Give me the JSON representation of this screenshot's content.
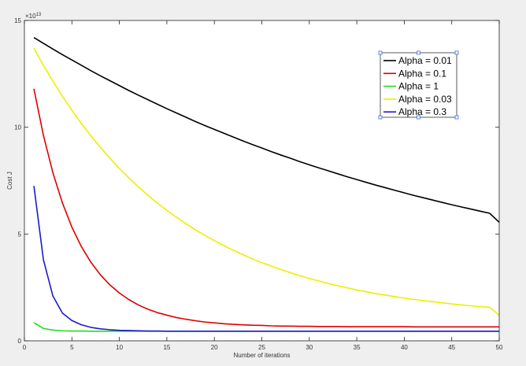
{
  "chart_data": {
    "type": "line",
    "title": "",
    "xlabel": "Number of iterations",
    "ylabel": "Cost J",
    "exponent_label": "×10",
    "exponent_power": "13",
    "xlim": [
      0,
      50
    ],
    "ylim": [
      0,
      15
    ],
    "y_multiplier": 10000000000000.0,
    "xticks": [
      0,
      5,
      10,
      15,
      20,
      25,
      30,
      35,
      40,
      45,
      50
    ],
    "yticks": [
      0,
      5,
      10,
      15
    ],
    "grid": false,
    "legend_position": "top-right",
    "x": [
      1,
      2,
      3,
      4,
      5,
      6,
      7,
      8,
      9,
      10,
      11,
      12,
      13,
      14,
      15,
      16,
      17,
      18,
      19,
      20,
      21,
      22,
      23,
      24,
      25,
      26,
      27,
      28,
      29,
      30,
      31,
      32,
      33,
      34,
      35,
      36,
      37,
      38,
      39,
      40,
      41,
      42,
      43,
      44,
      45,
      46,
      47,
      48,
      49,
      50
    ],
    "series": [
      {
        "name": "Alpha = 0.01",
        "color": "#000000",
        "values": [
          14.2,
          13.93,
          13.66,
          13.4,
          13.15,
          12.9,
          12.65,
          12.41,
          12.18,
          11.95,
          11.72,
          11.5,
          11.29,
          11.08,
          10.87,
          10.67,
          10.47,
          10.27,
          10.08,
          9.9,
          9.72,
          9.54,
          9.36,
          9.19,
          9.03,
          8.86,
          8.7,
          8.55,
          8.39,
          8.24,
          8.1,
          7.96,
          7.82,
          7.68,
          7.55,
          7.42,
          7.29,
          7.17,
          7.05,
          6.93,
          6.81,
          6.7,
          6.59,
          6.48,
          6.37,
          6.27,
          6.17,
          6.07,
          5.97,
          5.55
        ]
      },
      {
        "name": "Alpha = 0.1",
        "color": "#e00000",
        "values": [
          11.8,
          9.62,
          7.87,
          6.46,
          5.32,
          4.41,
          3.68,
          3.09,
          2.62,
          2.24,
          1.93,
          1.68,
          1.48,
          1.32,
          1.2,
          1.09,
          1.01,
          0.94,
          0.88,
          0.84,
          0.8,
          0.77,
          0.75,
          0.73,
          0.72,
          0.7,
          0.69,
          0.69,
          0.68,
          0.68,
          0.67,
          0.67,
          0.67,
          0.66,
          0.66,
          0.66,
          0.66,
          0.66,
          0.66,
          0.66,
          0.65,
          0.65,
          0.65,
          0.65,
          0.65,
          0.65,
          0.65,
          0.65,
          0.65,
          0.65
        ]
      },
      {
        "name": "Alpha = 1",
        "color": "#22dd22",
        "values": [
          0.85,
          0.58,
          0.5,
          0.47,
          0.46,
          0.46,
          0.45,
          0.45,
          0.45,
          0.45,
          0.45,
          0.45,
          0.45,
          0.45,
          0.45,
          0.45,
          0.45,
          0.45,
          0.45,
          0.45,
          0.45,
          0.45,
          0.45,
          0.45,
          0.45,
          0.45,
          0.45,
          0.45,
          0.45,
          0.45,
          0.45,
          0.45,
          0.45,
          0.45,
          0.45,
          0.45,
          0.45,
          0.45,
          0.45,
          0.45,
          0.45,
          0.45,
          0.45,
          0.45,
          0.45,
          0.45,
          0.45,
          0.45,
          0.45,
          0.45
        ]
      },
      {
        "name": "Alpha = 0.03",
        "color": "#eeee00",
        "values": [
          13.7,
          12.9,
          12.16,
          11.45,
          10.79,
          10.17,
          9.6,
          9.06,
          8.55,
          8.07,
          7.63,
          7.21,
          6.82,
          6.45,
          6.11,
          5.79,
          5.49,
          5.2,
          4.94,
          4.69,
          4.46,
          4.24,
          4.04,
          3.84,
          3.66,
          3.5,
          3.34,
          3.19,
          3.05,
          2.92,
          2.8,
          2.68,
          2.58,
          2.48,
          2.38,
          2.3,
          2.21,
          2.14,
          2.07,
          2.0,
          1.94,
          1.88,
          1.83,
          1.78,
          1.73,
          1.68,
          1.64,
          1.6,
          1.57,
          1.2
        ]
      },
      {
        "name": "Alpha = 0.3",
        "color": "#1a1acc",
        "values": [
          7.25,
          3.8,
          2.1,
          1.3,
          0.95,
          0.75,
          0.63,
          0.56,
          0.52,
          0.49,
          0.48,
          0.47,
          0.46,
          0.46,
          0.45,
          0.45,
          0.45,
          0.45,
          0.45,
          0.45,
          0.45,
          0.45,
          0.45,
          0.45,
          0.45,
          0.45,
          0.45,
          0.45,
          0.45,
          0.45,
          0.45,
          0.45,
          0.45,
          0.45,
          0.45,
          0.45,
          0.45,
          0.45,
          0.45,
          0.45,
          0.45,
          0.45,
          0.45,
          0.45,
          0.45,
          0.45,
          0.45,
          0.45,
          0.45,
          0.45
        ]
      }
    ]
  }
}
